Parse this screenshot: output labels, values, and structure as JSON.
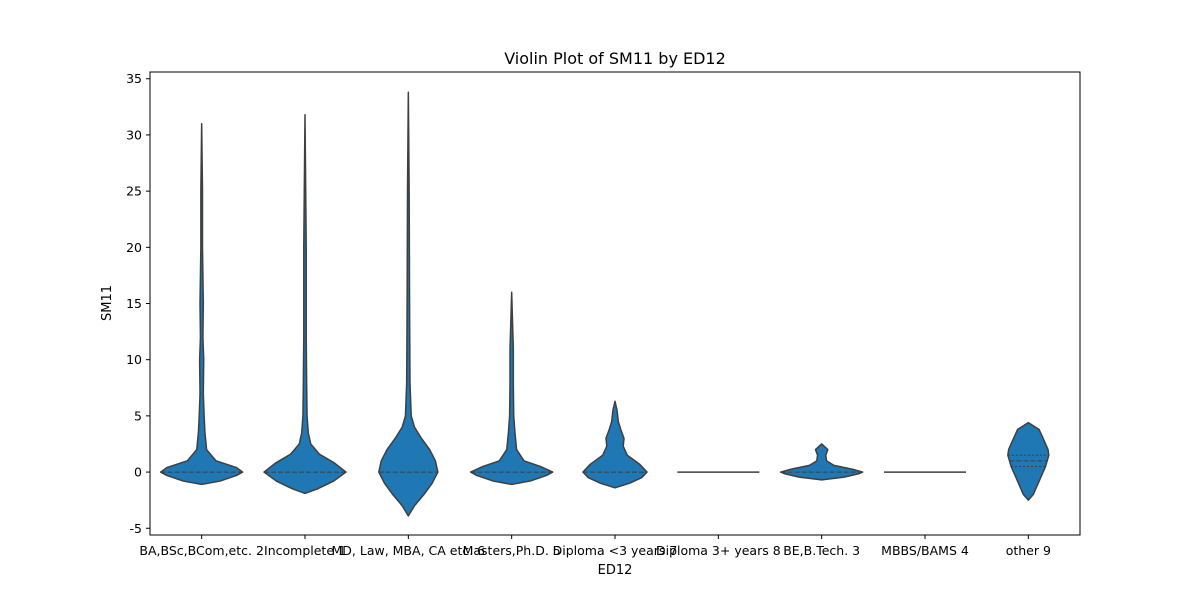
{
  "chart_data": {
    "type": "violin",
    "title": "Violin Plot of SM11 by ED12",
    "xlabel": "ED12",
    "ylabel": "SM11",
    "ylim": [
      -5.6,
      35.6
    ],
    "yticks": [
      -5,
      0,
      5,
      10,
      15,
      20,
      25,
      30,
      35
    ],
    "grid": false,
    "legend": "none",
    "color": "#1f77b4",
    "categories": [
      "BA,BSc,BCom,etc. 2",
      "Incomplete 1",
      "MD, Law, MBA, CA etc. 6",
      "Masters,Ph.D. 5",
      "Diploma <3 years 7",
      "Diploma 3+ years 8",
      "BE,B.Tech. 3",
      "MBBS/BAMS 4",
      "other 9"
    ],
    "violins": [
      {
        "min": -1.1,
        "max": 31.0,
        "median": 0.0,
        "q1": 0.0,
        "q3": 0.0,
        "profile": [
          [
            -1.1,
            0
          ],
          [
            -0.8,
            0.45
          ],
          [
            -0.3,
            0.85
          ],
          [
            0.0,
            1.0
          ],
          [
            0.4,
            0.85
          ],
          [
            1.0,
            0.35
          ],
          [
            2.0,
            0.12
          ],
          [
            3.5,
            0.08
          ],
          [
            5.0,
            0.06
          ],
          [
            7.0,
            0.04
          ],
          [
            10.0,
            0.05
          ],
          [
            12.0,
            0.03
          ],
          [
            15.0,
            0.04
          ],
          [
            20.0,
            0.02
          ],
          [
            25.0,
            0.02
          ],
          [
            31.0,
            0
          ]
        ]
      },
      {
        "min": -1.9,
        "max": 31.8,
        "median": 0.0,
        "q1": 0.0,
        "q3": 0.0,
        "profile": [
          [
            -1.9,
            0
          ],
          [
            -1.5,
            0.3
          ],
          [
            -0.8,
            0.7
          ],
          [
            0.0,
            1.0
          ],
          [
            0.8,
            0.72
          ],
          [
            1.6,
            0.35
          ],
          [
            2.5,
            0.14
          ],
          [
            3.5,
            0.08
          ],
          [
            5.0,
            0.05
          ],
          [
            8.0,
            0.04
          ],
          [
            12.0,
            0.03
          ],
          [
            20.0,
            0.03
          ],
          [
            31.8,
            0
          ]
        ]
      },
      {
        "min": -3.9,
        "max": 33.8,
        "median": 0.0,
        "q1": 0.0,
        "q3": 0.0,
        "profile": [
          [
            -3.9,
            0
          ],
          [
            -3.0,
            0.15
          ],
          [
            -2.0,
            0.38
          ],
          [
            -1.0,
            0.58
          ],
          [
            0.0,
            0.72
          ],
          [
            1.0,
            0.66
          ],
          [
            2.0,
            0.52
          ],
          [
            3.0,
            0.32
          ],
          [
            4.0,
            0.15
          ],
          [
            5.0,
            0.07
          ],
          [
            8.0,
            0.04
          ],
          [
            15.0,
            0.03
          ],
          [
            25.0,
            0.02
          ],
          [
            33.8,
            0
          ]
        ]
      },
      {
        "min": -1.1,
        "max": 16.0,
        "median": 0.0,
        "q1": 0.0,
        "q3": 0.0,
        "profile": [
          [
            -1.1,
            0
          ],
          [
            -0.8,
            0.45
          ],
          [
            -0.3,
            0.85
          ],
          [
            0.0,
            1.0
          ],
          [
            0.5,
            0.7
          ],
          [
            1.0,
            0.3
          ],
          [
            2.0,
            0.12
          ],
          [
            3.5,
            0.08
          ],
          [
            5.0,
            0.05
          ],
          [
            8.0,
            0.04
          ],
          [
            11.0,
            0.04
          ],
          [
            16.0,
            0
          ]
        ]
      },
      {
        "min": -1.4,
        "max": 6.3,
        "median": 0.0,
        "q1": 0.0,
        "q3": 0.0,
        "profile": [
          [
            -1.4,
            0
          ],
          [
            -1.0,
            0.35
          ],
          [
            -0.5,
            0.65
          ],
          [
            0.0,
            0.78
          ],
          [
            0.7,
            0.6
          ],
          [
            1.5,
            0.3
          ],
          [
            2.3,
            0.2
          ],
          [
            3.0,
            0.22
          ],
          [
            3.8,
            0.14
          ],
          [
            4.5,
            0.08
          ],
          [
            5.5,
            0.05
          ],
          [
            6.3,
            0
          ]
        ]
      },
      {
        "min": 0.0,
        "max": 0.0,
        "median": 0.0,
        "flat": true,
        "profile": []
      },
      {
        "min": -0.7,
        "max": 2.5,
        "median": 0.0,
        "q1": 0.0,
        "q3": 0.0,
        "profile": [
          [
            -0.7,
            0
          ],
          [
            -0.45,
            0.55
          ],
          [
            -0.15,
            0.9
          ],
          [
            0.0,
            1.0
          ],
          [
            0.25,
            0.75
          ],
          [
            0.6,
            0.3
          ],
          [
            1.0,
            0.12
          ],
          [
            1.5,
            0.1
          ],
          [
            2.0,
            0.15
          ],
          [
            2.5,
            0
          ]
        ]
      },
      {
        "min": 0.0,
        "max": 0.0,
        "median": 0.0,
        "flat": true,
        "profile": []
      },
      {
        "min": -2.5,
        "max": 4.4,
        "median": 1.0,
        "q1": 0.5,
        "q3": 1.5,
        "profile": [
          [
            -2.5,
            0
          ],
          [
            -2.0,
            0.12
          ],
          [
            -1.0,
            0.24
          ],
          [
            0.0,
            0.36
          ],
          [
            0.5,
            0.42
          ],
          [
            1.0,
            0.46
          ],
          [
            1.5,
            0.5
          ],
          [
            2.0,
            0.48
          ],
          [
            3.0,
            0.36
          ],
          [
            3.8,
            0.26
          ],
          [
            4.4,
            0
          ]
        ]
      }
    ]
  }
}
